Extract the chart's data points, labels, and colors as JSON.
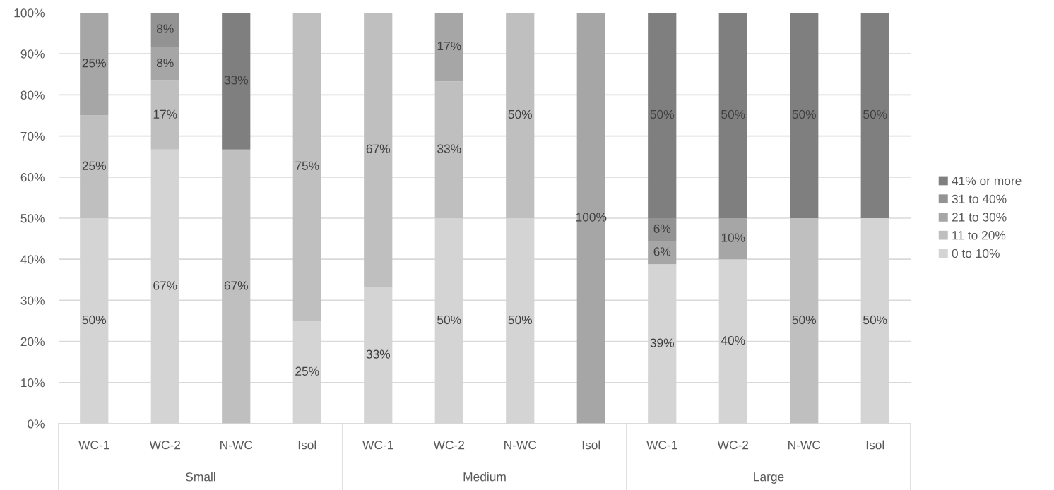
{
  "chart_data": {
    "type": "bar",
    "stacked": true,
    "categories": [
      "WC-1",
      "WC-2",
      "N-WC",
      "Isol",
      "WC-1",
      "WC-2",
      "N-WC",
      "Isol",
      "WC-1",
      "WC-2",
      "N-WC",
      "Isol"
    ],
    "annotations": [
      "Small",
      "Medium",
      "Large"
    ],
    "series": [
      {
        "name": "0 to 10%",
        "color": "#d4d4d4",
        "values": [
          50,
          66.7,
          null,
          25,
          33.3,
          50,
          50,
          null,
          38.8,
          40,
          null,
          50
        ],
        "value_labels": [
          "50%",
          "67%",
          null,
          "25%",
          "33%",
          "50%",
          "50%",
          null,
          "39%",
          "40%",
          null,
          "50%"
        ]
      },
      {
        "name": "11 to 20%",
        "color": "#bfbfbf",
        "values": [
          25,
          16.7,
          66.7,
          75,
          66.7,
          33.3,
          50,
          null,
          null,
          null,
          50,
          null
        ],
        "value_labels": [
          "25%",
          "17%",
          "67%",
          "75%",
          "67%",
          "33%",
          "50%",
          null,
          null,
          null,
          "50%",
          null
        ]
      },
      {
        "name": "21 to 30%",
        "color": "#a6a6a6",
        "values": [
          25,
          8.3,
          null,
          null,
          null,
          16.7,
          null,
          100,
          5.6,
          10,
          null,
          null
        ],
        "value_labels": [
          "25%",
          "8%",
          null,
          null,
          null,
          "17%",
          null,
          "100%",
          "6%",
          "10%",
          null,
          null
        ]
      },
      {
        "name": "31 to 40%",
        "color": "#939393",
        "values": [
          null,
          8.3,
          null,
          null,
          null,
          null,
          null,
          null,
          5.6,
          null,
          null,
          null
        ],
        "value_labels": [
          null,
          "8%",
          null,
          null,
          null,
          null,
          null,
          null,
          "6%",
          null,
          null,
          null
        ]
      },
      {
        "name": "41% or more",
        "color": "#7f7f7f",
        "values": [
          null,
          null,
          33.3,
          null,
          null,
          null,
          null,
          null,
          50,
          50,
          50,
          50
        ],
        "value_labels": [
          null,
          null,
          "33%",
          null,
          null,
          null,
          null,
          null,
          "50%",
          "50%",
          "50%",
          "50%"
        ]
      }
    ],
    "ylim": [
      0,
      100
    ],
    "yticks": [
      {
        "value": 0,
        "label": "0%"
      },
      {
        "value": 10,
        "label": "10%"
      },
      {
        "value": 20,
        "label": "20%"
      },
      {
        "value": 30,
        "label": "30%"
      },
      {
        "value": 40,
        "label": "40%"
      },
      {
        "value": 50,
        "label": "50%"
      },
      {
        "value": 60,
        "label": "60%"
      },
      {
        "value": 70,
        "label": "70%"
      },
      {
        "value": 80,
        "label": "80%"
      },
      {
        "value": 90,
        "label": "90%"
      },
      {
        "value": 100,
        "label": "100%"
      }
    ],
    "grid": "y",
    "legend": "right"
  }
}
